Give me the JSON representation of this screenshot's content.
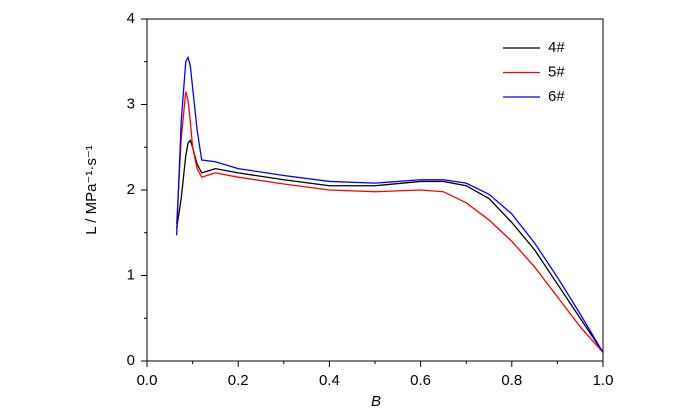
{
  "chart_data": {
    "type": "line",
    "x_label": "B",
    "y_label": "L / MPa⁻¹·s⁻¹",
    "x": [
      0.065,
      0.075,
      0.085,
      0.09,
      0.095,
      0.1,
      0.11,
      0.12,
      0.15,
      0.2,
      0.3,
      0.4,
      0.5,
      0.6,
      0.65,
      0.7,
      0.75,
      0.8,
      0.85,
      0.9,
      0.95,
      1.0
    ],
    "series": [
      {
        "name": "4#",
        "color": "#000000",
        "values": [
          1.55,
          1.9,
          2.4,
          2.55,
          2.58,
          2.5,
          2.3,
          2.2,
          2.25,
          2.2,
          2.12,
          2.05,
          2.05,
          2.1,
          2.1,
          2.05,
          1.9,
          1.62,
          1.3,
          0.9,
          0.5,
          0.1
        ]
      },
      {
        "name": "5#",
        "color": "#ff0000",
        "values": [
          1.6,
          2.6,
          3.15,
          3.05,
          2.8,
          2.5,
          2.25,
          2.15,
          2.2,
          2.15,
          2.07,
          2.0,
          1.98,
          2.0,
          1.98,
          1.85,
          1.65,
          1.4,
          1.1,
          0.75,
          0.4,
          0.1
        ]
      },
      {
        "name": "6#",
        "color": "#0000ff",
        "values": [
          1.47,
          2.8,
          3.5,
          3.55,
          3.45,
          3.2,
          2.7,
          2.35,
          2.33,
          2.25,
          2.17,
          2.1,
          2.08,
          2.12,
          2.12,
          2.08,
          1.95,
          1.72,
          1.38,
          0.98,
          0.55,
          0.1
        ]
      }
    ],
    "xlim": [
      0,
      1
    ],
    "xticks": [
      {
        "value": 0,
        "label": "0.0"
      },
      0.2,
      0.4,
      0.6,
      0.8,
      {
        "value": 1,
        "label": "1.0"
      }
    ],
    "ylim": [
      0,
      4
    ],
    "yticks": [
      0,
      1,
      2,
      3,
      4
    ],
    "legend": "upper right"
  }
}
